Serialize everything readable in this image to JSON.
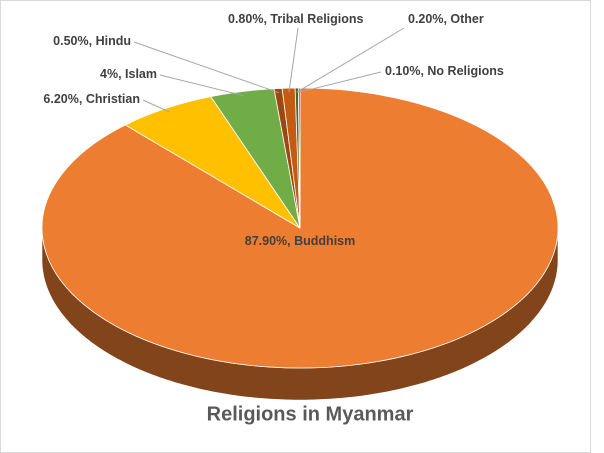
{
  "chart_data": {
    "type": "pie",
    "title": "Religions in Myanmar",
    "categories": [
      "Buddhism",
      "Christian",
      "Islam",
      "Hindu",
      "Tribal Religions",
      "Other",
      "No Religions"
    ],
    "values": [
      87.9,
      6.2,
      4,
      0.5,
      0.8,
      0.2,
      0.1
    ],
    "value_labels": [
      "87.90%",
      "6.20%",
      "4%",
      "0.50%",
      "0.80%",
      "0.20%",
      "0.10%"
    ],
    "colors": [
      "#ed7d31",
      "#ffc000",
      "#70ad47",
      "#9e480e",
      "#c55a11",
      "#43682b",
      "#264478"
    ]
  }
}
